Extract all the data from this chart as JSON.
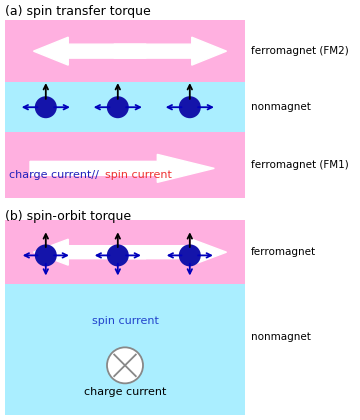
{
  "fig_width": 3.6,
  "fig_height": 4.2,
  "dpi": 100,
  "bg_color": "#ffffff",
  "pink_color": "#FFB0E0",
  "cyan_color": "#AAEEFF",
  "ball_color": "#1414AA",
  "dark_blue": "#0000BB",
  "black": "#000000",
  "white": "#ffffff",
  "title_a": "(a) spin transfer torque",
  "title_b": "(b) spin-orbit torque",
  "label_fm2": "ferromagnet (FM2)",
  "label_nm1": "nonmagnet",
  "label_fm1": "ferromagnet (FM1)",
  "label_fm": "ferromagnet",
  "label_nm2": "nonmagnet",
  "charge_text": "charge current//",
  "spin_text_a": "spin current",
  "spin_text_b": "spin current",
  "charge_text_b": "charge current"
}
